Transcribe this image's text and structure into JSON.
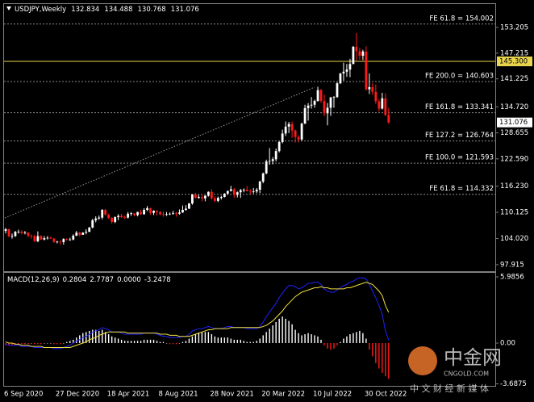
{
  "chart_data": [
    {
      "type": "candlestick",
      "symbol": "USDJPY,Weekly",
      "categories": [
        "6 Sep 2020",
        null,
        null,
        null,
        null,
        null,
        null,
        null,
        null,
        null,
        null,
        null,
        null,
        null,
        null,
        null,
        "27 Dec 2020",
        null,
        null,
        null,
        null,
        null,
        null,
        null,
        null,
        null,
        null,
        null,
        null,
        null,
        null,
        null,
        "18 Apr 2021",
        null,
        null,
        null,
        null,
        null,
        null,
        null,
        null,
        null,
        null,
        null,
        null,
        null,
        null,
        null,
        "8 Aug 2021",
        null,
        null,
        null,
        null,
        null,
        null,
        null,
        null,
        null,
        null,
        null,
        null,
        null,
        null,
        null,
        "28 Nov 2021",
        null,
        null,
        null,
        null,
        null,
        null,
        null,
        null,
        null,
        null,
        null,
        null,
        null,
        null,
        null,
        "20 Mar 2022",
        null,
        null,
        null,
        null,
        null,
        null,
        null,
        null,
        null,
        null,
        null,
        null,
        null,
        null,
        null,
        "10 Jul 2022",
        null,
        null,
        null,
        null,
        null,
        null,
        null,
        null,
        null,
        null,
        null,
        null,
        null,
        null,
        null,
        "30 Oct 2022",
        null,
        null,
        null,
        null,
        null,
        null,
        null
      ],
      "open": [
        105.8,
        106.2,
        104.6,
        104.6,
        105.6,
        105.6,
        105.3,
        105.4,
        104.7,
        104.6,
        103.4,
        104.6,
        103.8,
        104.1,
        104.2,
        104.0,
        103.3,
        103.3,
        103.2,
        103.9,
        103.8,
        103.8,
        104.7,
        105.4,
        104.9,
        105.4,
        105.6,
        106.6,
        108.3,
        108.7,
        108.9,
        110.7,
        109.6,
        108.8,
        107.9,
        109.0,
        109.3,
        109.0,
        108.9,
        109.8,
        109.9,
        109.5,
        110.2,
        109.7,
        110.7,
        111.1,
        110.0,
        110.5,
        110.2,
        109.7,
        109.6,
        109.7,
        109.8,
        109.9,
        109.8,
        110.1,
        110.7,
        111.0,
        112.2,
        114.3,
        113.5,
        113.7,
        113.4,
        114.0,
        114.9,
        113.4,
        112.8,
        113.5,
        113.7,
        114.5,
        115.1,
        115.5,
        114.2,
        114.8,
        115.3,
        115.4,
        115.1,
        115.0,
        115.0,
        115.4,
        117.3,
        119.2,
        122.0,
        122.1,
        122.5,
        124.4,
        126.5,
        128.5,
        130.1,
        130.7,
        129.2,
        127.7,
        127.1,
        130.8,
        134.4,
        135.0,
        135.2,
        136.1,
        138.6,
        136.1,
        133.2,
        134.5,
        136.9,
        137.0,
        140.2,
        142.5,
        142.9,
        143.4,
        144.7,
        148.7,
        147.7,
        146.6,
        147.6,
        138.8,
        139.3,
        138.2,
        136.0,
        134.3,
        136.7,
        132.834
      ],
      "high": [
        106.5,
        106.3,
        105.2,
        105.8,
        106.1,
        106.0,
        105.8,
        105.5,
        105.0,
        104.9,
        105.7,
        104.8,
        104.6,
        104.6,
        104.5,
        104.2,
        103.5,
        103.6,
        104.1,
        104.1,
        104.2,
        105.0,
        105.8,
        105.6,
        105.5,
        106.2,
        106.7,
        108.6,
        109.2,
        109.4,
        110.9,
        110.9,
        109.8,
        109.0,
        109.2,
        109.7,
        109.8,
        109.4,
        110.2,
        110.2,
        109.9,
        110.3,
        110.7,
        111.1,
        111.6,
        111.2,
        110.6,
        110.6,
        110.4,
        110.3,
        110.2,
        110.1,
        110.5,
        110.2,
        110.8,
        111.7,
        111.8,
        112.3,
        114.4,
        114.7,
        114.2,
        114.4,
        114.1,
        115.0,
        115.5,
        113.9,
        113.8,
        114.0,
        114.6,
        115.2,
        116.3,
        115.8,
        115.0,
        115.6,
        115.7,
        116.3,
        115.5,
        115.8,
        115.8,
        117.5,
        119.4,
        122.4,
        125.1,
        123.0,
        125.0,
        126.7,
        129.4,
        131.3,
        131.2,
        131.3,
        129.4,
        128.1,
        131.0,
        135.2,
        135.6,
        137.0,
        136.4,
        139.4,
        138.9,
        137.5,
        135.6,
        137.0,
        137.2,
        140.4,
        142.6,
        145.0,
        144.7,
        145.9,
        148.9,
        151.9,
        148.5,
        148.0,
        148.8,
        142.5,
        140.3,
        139.9,
        136.5,
        138.0,
        137.9,
        134.488
      ],
      "low": [
        105.2,
        104.3,
        104.0,
        104.4,
        105.2,
        105.0,
        105.0,
        104.3,
        104.0,
        103.2,
        103.2,
        103.7,
        103.6,
        103.8,
        103.9,
        103.0,
        102.9,
        102.6,
        102.6,
        103.5,
        103.5,
        103.6,
        104.6,
        104.5,
        104.9,
        105.0,
        105.5,
        106.4,
        107.8,
        108.4,
        108.5,
        109.4,
        108.6,
        107.5,
        107.6,
        108.3,
        108.8,
        108.6,
        108.7,
        109.3,
        109.2,
        109.2,
        109.5,
        109.6,
        110.4,
        109.6,
        109.5,
        109.4,
        109.4,
        109.1,
        109.3,
        109.5,
        109.6,
        109.1,
        109.6,
        110.0,
        110.5,
        110.9,
        111.9,
        113.4,
        113.3,
        112.7,
        112.7,
        113.8,
        113.1,
        112.5,
        112.5,
        113.1,
        113.6,
        114.2,
        115.0,
        113.5,
        113.6,
        113.5,
        114.8,
        115.0,
        114.4,
        114.5,
        114.6,
        114.6,
        116.9,
        119.0,
        121.2,
        121.3,
        122.0,
        124.1,
        126.2,
        127.9,
        128.6,
        127.5,
        126.4,
        126.4,
        126.8,
        130.7,
        131.5,
        134.3,
        134.5,
        135.9,
        135.6,
        132.5,
        130.4,
        132.6,
        134.5,
        136.8,
        140.0,
        140.8,
        141.7,
        141.6,
        144.6,
        145.5,
        145.7,
        145.6,
        138.5,
        137.7,
        137.5,
        135.4,
        133.6,
        134.1,
        132.6,
        130.768
      ],
      "close": [
        106.2,
        104.6,
        104.6,
        105.6,
        105.6,
        105.3,
        105.4,
        104.7,
        104.6,
        103.4,
        104.6,
        103.8,
        104.1,
        104.2,
        104.0,
        103.3,
        103.3,
        103.2,
        103.9,
        103.8,
        103.8,
        104.7,
        105.4,
        104.9,
        105.4,
        105.6,
        106.6,
        108.3,
        108.7,
        108.9,
        110.7,
        109.6,
        108.8,
        107.9,
        109.0,
        109.3,
        109.0,
        108.9,
        109.8,
        109.9,
        109.5,
        110.2,
        109.7,
        110.7,
        111.1,
        110.0,
        110.5,
        110.2,
        109.7,
        109.6,
        109.7,
        109.8,
        109.9,
        109.8,
        110.1,
        110.7,
        111.0,
        112.2,
        114.3,
        113.5,
        113.7,
        113.4,
        114.0,
        114.9,
        113.4,
        112.8,
        113.5,
        113.7,
        114.5,
        115.1,
        115.5,
        114.2,
        114.8,
        115.3,
        115.4,
        115.1,
        115.0,
        115.0,
        115.4,
        117.3,
        119.2,
        122.0,
        122.1,
        122.5,
        124.4,
        126.5,
        128.5,
        130.1,
        130.7,
        129.2,
        127.7,
        127.1,
        130.8,
        134.4,
        135.0,
        135.2,
        136.1,
        138.6,
        136.1,
        133.2,
        134.5,
        136.9,
        137.0,
        140.2,
        142.5,
        142.9,
        143.4,
        144.7,
        148.7,
        147.7,
        146.6,
        147.6,
        138.8,
        139.3,
        138.2,
        136.0,
        134.3,
        136.7,
        132.8,
        131.076
      ],
      "up_color": "#ffffff",
      "down_color": "#ff1a1a",
      "ylim": [
        96.41,
        158.85
      ],
      "yticks": [
        153.205,
        147.215,
        141.225,
        {
          "value": 134.72,
          "label": "134.720"
        },
        128.655,
        {
          "value": 122.59,
          "label": "122.590"
        },
        {
          "value": 116.23,
          "label": "116.230"
        },
        110.125,
        {
          "value": 104.02,
          "label": "104.020"
        },
        97.915
      ],
      "levels": [
        {
          "value": 154.002,
          "label": "FE 61.8 = 154.002"
        },
        {
          "value": 140.603,
          "label": "FE 200.0 = 140.603"
        },
        {
          "value": 133.341,
          "label": "FE 161.8 = 133.341"
        },
        {
          "value": 126.764,
          "label": "FE 127.2 = 126.764"
        },
        {
          "value": 121.593,
          "label": "FE 100.0 = 121.593"
        },
        {
          "value": 114.332,
          "label": "FE 61.8 = 114.332"
        }
      ],
      "hline": {
        "value": 145.3,
        "label": "145.300",
        "color": "#e8d44d"
      }
    },
    {
      "type": "macd",
      "title": "MACD(12,26,9)",
      "extra_value": "0.0000",
      "series": [
        {
          "color": "#2020ff",
          "values": [
            -0.1,
            -0.2,
            -0.2,
            -0.2,
            -0.2,
            -0.3,
            -0.3,
            -0.3,
            -0.3,
            -0.4,
            -0.4,
            -0.4,
            -0.4,
            -0.4,
            -0.4,
            -0.5,
            -0.5,
            -0.5,
            -0.4,
            -0.3,
            -0.2,
            0.0,
            0.2,
            0.3,
            0.5,
            0.6,
            0.8,
            1.0,
            1.1,
            1.2,
            1.4,
            1.3,
            1.2,
            1.0,
            1.0,
            1.0,
            0.9,
            0.8,
            0.8,
            0.8,
            0.8,
            0.8,
            0.8,
            0.9,
            0.9,
            0.9,
            0.9,
            0.8,
            0.7,
            0.6,
            0.6,
            0.5,
            0.5,
            0.5,
            0.5,
            0.6,
            0.6,
            0.8,
            1.1,
            1.2,
            1.3,
            1.3,
            1.4,
            1.5,
            1.4,
            1.3,
            1.3,
            1.3,
            1.4,
            1.5,
            1.5,
            1.4,
            1.4,
            1.4,
            1.4,
            1.3,
            1.3,
            1.3,
            1.3,
            1.5,
            1.9,
            2.4,
            2.8,
            3.2,
            3.6,
            4.1,
            4.5,
            4.9,
            5.2,
            5.2,
            5.1,
            4.9,
            5.0,
            5.2,
            5.4,
            5.4,
            5.5,
            5.5,
            5.3,
            4.9,
            4.7,
            4.6,
            4.6,
            4.8,
            5.0,
            5.2,
            5.3,
            5.5,
            5.6,
            5.8,
            5.9,
            5.9,
            5.8,
            5.3,
            4.7,
            4.1,
            3.4,
            2.6,
            1.1,
            0.2804
          ]
        },
        {
          "color": "#f0e040",
          "values": [
            0.1,
            0.0,
            0.0,
            -0.1,
            -0.1,
            -0.2,
            -0.2,
            -0.2,
            -0.3,
            -0.3,
            -0.3,
            -0.3,
            -0.4,
            -0.4,
            -0.4,
            -0.4,
            -0.4,
            -0.4,
            -0.4,
            -0.4,
            -0.4,
            -0.3,
            -0.2,
            -0.1,
            0.0,
            0.1,
            0.3,
            0.4,
            0.5,
            0.7,
            0.8,
            0.9,
            1.0,
            1.0,
            1.0,
            1.0,
            1.0,
            1.0,
            0.9,
            0.9,
            0.9,
            0.9,
            0.9,
            0.9,
            0.9,
            0.9,
            0.9,
            0.9,
            0.8,
            0.8,
            0.8,
            0.7,
            0.7,
            0.7,
            0.6,
            0.6,
            0.6,
            0.6,
            0.7,
            0.8,
            0.9,
            1.0,
            1.1,
            1.2,
            1.2,
            1.3,
            1.3,
            1.3,
            1.3,
            1.3,
            1.4,
            1.4,
            1.4,
            1.4,
            1.4,
            1.4,
            1.4,
            1.4,
            1.4,
            1.4,
            1.5,
            1.6,
            1.8,
            2.0,
            2.3,
            2.6,
            2.9,
            3.3,
            3.6,
            3.9,
            4.2,
            4.4,
            4.6,
            4.7,
            4.8,
            4.9,
            5.0,
            5.0,
            5.1,
            5.0,
            5.0,
            4.9,
            4.9,
            4.9,
            4.9,
            4.9,
            5.0,
            5.0,
            5.1,
            5.2,
            5.3,
            5.4,
            5.5,
            5.4,
            5.3,
            5.0,
            4.7,
            4.3,
            3.4,
            2.7787
          ]
        }
      ],
      "histogram": {
        "color": "#ffffff",
        "negative_color": "#ff1a1a",
        "values": [
          -0.2,
          -0.2,
          -0.2,
          -0.1,
          -0.1,
          -0.1,
          -0.1,
          -0.1,
          0.0,
          -0.1,
          -0.1,
          -0.1,
          0.0,
          0.0,
          0.0,
          -0.1,
          -0.1,
          -0.1,
          0.0,
          0.1,
          0.2,
          0.3,
          0.5,
          0.7,
          0.9,
          1.0,
          1.1,
          1.2,
          1.2,
          1.1,
          1.2,
          1.0,
          0.8,
          0.6,
          0.5,
          0.4,
          0.3,
          0.2,
          0.2,
          0.2,
          0.2,
          0.2,
          0.2,
          0.3,
          0.3,
          0.3,
          0.3,
          0.2,
          0.1,
          0.1,
          0.0,
          -0.1,
          -0.1,
          -0.1,
          0.0,
          0.1,
          0.2,
          0.4,
          0.6,
          0.8,
          0.9,
          1.0,
          1.0,
          1.0,
          0.8,
          0.6,
          0.5,
          0.5,
          0.5,
          0.5,
          0.4,
          0.3,
          0.3,
          0.3,
          0.2,
          0.1,
          0.1,
          0.1,
          0.2,
          0.4,
          0.7,
          1.0,
          1.3,
          1.6,
          1.9,
          2.2,
          2.4,
          2.2,
          2.0,
          1.7,
          1.2,
          0.9,
          0.7,
          0.8,
          0.9,
          0.8,
          0.7,
          0.6,
          0.3,
          -0.2,
          -0.5,
          -0.6,
          -0.5,
          -0.2,
          0.1,
          0.4,
          0.6,
          0.8,
          0.9,
          1.0,
          1.1,
          0.9,
          0.4,
          -0.6,
          -1.2,
          -1.8,
          -2.3,
          -2.7,
          -3.0,
          -3.2478
        ]
      },
      "ylim": [
        -3.87,
        6.35
      ],
      "yticks": [
        5.9856,
        {
          "value": 0,
          "label": "0.00"
        },
        -3.6875
      ]
    }
  ],
  "watermark": {
    "brand": "中金网",
    "site": "CNGOLD.COM",
    "slogan": "中 文 财 经 新 媒 体"
  }
}
